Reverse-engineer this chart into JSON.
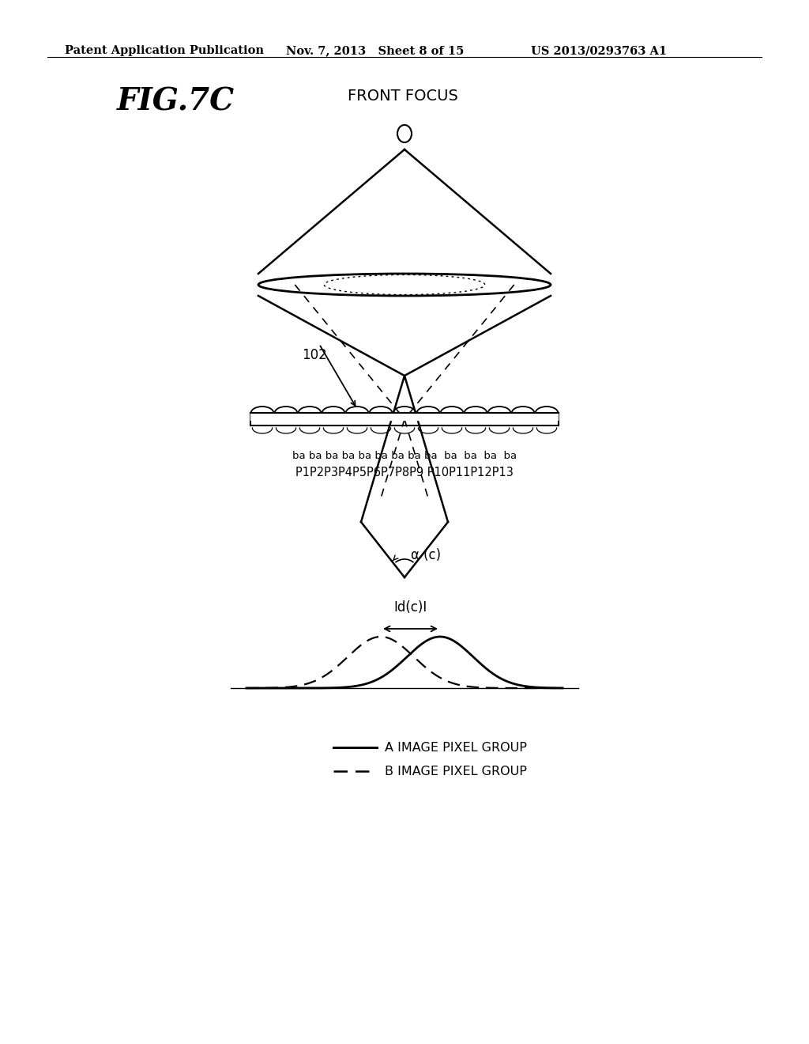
{
  "title_text": "FIG.7C",
  "subtitle_text": "FRONT FOCUS",
  "header_left": "Patent Application Publication",
  "header_middle": "Nov. 7, 2013   Sheet 8 of 15",
  "header_right": "US 2013/0293763 A1",
  "label_102": "102",
  "label_alpha": "α (c)",
  "label_idc": "Id(c)I",
  "pixel_labels_ba": "ba ba ba ba ba ba ba ba ba  ba  ba  ba  ba",
  "pixel_labels_P": "P1P2P3P4P5P6P7P8P9 P10P11P12P13",
  "legend_solid": "A IMAGE PIXEL GROUP",
  "legend_dashed": "B IMAGE PIXEL GROUP",
  "bg_color": "#ffffff",
  "line_color": "#000000"
}
